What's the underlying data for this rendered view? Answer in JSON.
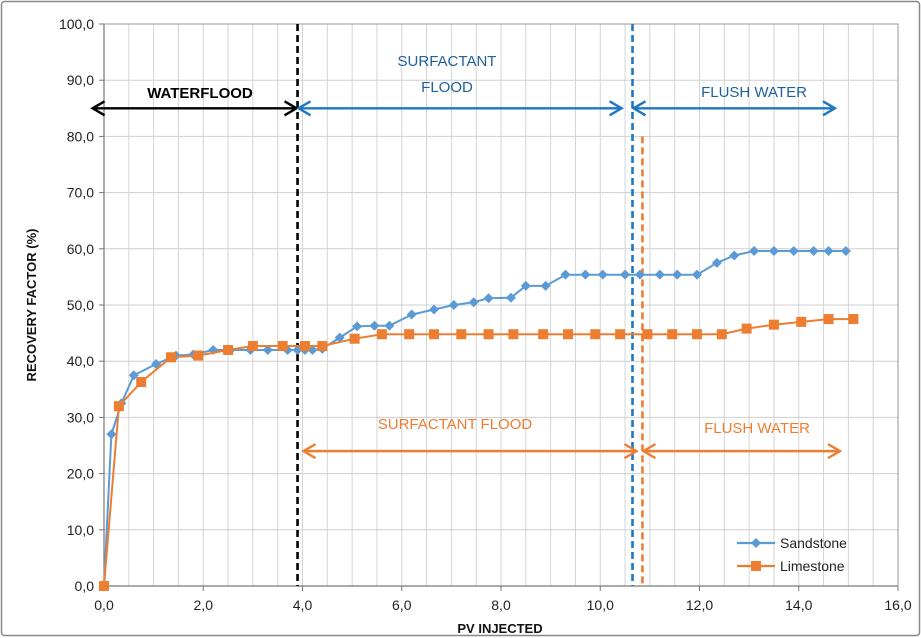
{
  "chart_data": {
    "type": "line",
    "title": "",
    "xlabel": "PV INJECTED",
    "ylabel": "RECOVERY  FACTOR (%)",
    "xlim": [
      0,
      16
    ],
    "ylim": [
      0,
      100
    ],
    "xticks": [
      "0,0",
      "2,0",
      "4,0",
      "6,0",
      "8,0",
      "10,0",
      "12,0",
      "14,0",
      "16,0"
    ],
    "yticks": [
      "0,0",
      "10,0",
      "20,0",
      "30,0",
      "40,0",
      "50,0",
      "60,0",
      "70,0",
      "80,0",
      "90,0",
      "100,0"
    ],
    "grid": true,
    "legend": "bottom-right",
    "series": [
      {
        "name": "Sandstone",
        "color": "#5b9bd5",
        "marker": "diamond",
        "points": [
          [
            0.0,
            0.0
          ],
          [
            0.15,
            27.0
          ],
          [
            0.35,
            32.5
          ],
          [
            0.6,
            37.5
          ],
          [
            1.05,
            39.5
          ],
          [
            1.45,
            41.0
          ],
          [
            1.8,
            41.2
          ],
          [
            2.2,
            42.0
          ],
          [
            2.55,
            42.0
          ],
          [
            2.95,
            42.0
          ],
          [
            3.3,
            42.0
          ],
          [
            3.7,
            42.0
          ],
          [
            3.9,
            42.0
          ],
          [
            4.05,
            42.0
          ],
          [
            4.2,
            42.0
          ],
          [
            4.4,
            42.2
          ],
          [
            4.75,
            44.2
          ],
          [
            5.1,
            46.2
          ],
          [
            5.45,
            46.3
          ],
          [
            5.75,
            46.3
          ],
          [
            6.2,
            48.3
          ],
          [
            6.65,
            49.2
          ],
          [
            7.05,
            50.0
          ],
          [
            7.45,
            50.5
          ],
          [
            7.75,
            51.2
          ],
          [
            8.2,
            51.3
          ],
          [
            8.5,
            53.4
          ],
          [
            8.9,
            53.4
          ],
          [
            9.3,
            55.4
          ],
          [
            9.7,
            55.4
          ],
          [
            10.05,
            55.4
          ],
          [
            10.5,
            55.4
          ],
          [
            10.8,
            55.4
          ],
          [
            11.2,
            55.4
          ],
          [
            11.55,
            55.4
          ],
          [
            11.95,
            55.4
          ],
          [
            12.35,
            57.5
          ],
          [
            12.7,
            58.8
          ],
          [
            13.1,
            59.6
          ],
          [
            13.5,
            59.6
          ],
          [
            13.9,
            59.6
          ],
          [
            14.3,
            59.6
          ],
          [
            14.6,
            59.6
          ],
          [
            14.95,
            59.6
          ]
        ]
      },
      {
        "name": "Limestone",
        "color": "#ed7d31",
        "marker": "square",
        "points": [
          [
            0.0,
            0.0
          ],
          [
            0.3,
            32.0
          ],
          [
            0.75,
            36.3
          ],
          [
            1.35,
            40.7
          ],
          [
            1.9,
            41.0
          ],
          [
            2.5,
            42.0
          ],
          [
            3.0,
            42.7
          ],
          [
            3.6,
            42.7
          ],
          [
            4.05,
            42.7
          ],
          [
            4.4,
            42.7
          ],
          [
            5.05,
            44.0
          ],
          [
            5.6,
            44.8
          ],
          [
            6.15,
            44.8
          ],
          [
            6.65,
            44.8
          ],
          [
            7.2,
            44.8
          ],
          [
            7.75,
            44.8
          ],
          [
            8.25,
            44.8
          ],
          [
            8.85,
            44.8
          ],
          [
            9.35,
            44.8
          ],
          [
            9.9,
            44.8
          ],
          [
            10.4,
            44.8
          ],
          [
            10.95,
            44.8
          ],
          [
            11.45,
            44.8
          ],
          [
            11.95,
            44.8
          ],
          [
            12.45,
            44.8
          ],
          [
            12.95,
            45.8
          ],
          [
            13.5,
            46.5
          ],
          [
            14.05,
            47.0
          ],
          [
            14.6,
            47.5
          ],
          [
            15.1,
            47.5
          ]
        ]
      }
    ],
    "annotations": {
      "waterflood": "WATERFLOOD",
      "surfactant_flood_top_1": "SURFACTANT",
      "surfactant_flood_top_2": "FLOOD",
      "flush_water_top": "FLUSH WATER",
      "surfactant_flood_bottom": "SURFACTANT FLOOD",
      "flush_water_bottom": "FLUSH WATER"
    },
    "reference_lines": [
      {
        "x": 3.9,
        "color": "#000000",
        "from_y": 0,
        "to_y": 100
      },
      {
        "x": 10.65,
        "color": "#1f77c2",
        "from_y": 0,
        "to_y": 100
      },
      {
        "x": 10.85,
        "color": "#ed7d31",
        "from_y": 0,
        "to_y": 80
      }
    ],
    "arrows": [
      {
        "from_x": -0.25,
        "to_x": 3.9,
        "y": 85,
        "color": "#000000"
      },
      {
        "from_x": 3.9,
        "to_x": 10.45,
        "y": 85,
        "color": "#1f77c2"
      },
      {
        "from_x": 10.65,
        "to_x": 14.75,
        "y": 85,
        "color": "#1f77c2"
      },
      {
        "from_x": 4.0,
        "to_x": 10.75,
        "y": 24,
        "color": "#ed7d31"
      },
      {
        "from_x": 10.85,
        "to_x": 14.85,
        "y": 24,
        "color": "#ed7d31"
      }
    ]
  }
}
